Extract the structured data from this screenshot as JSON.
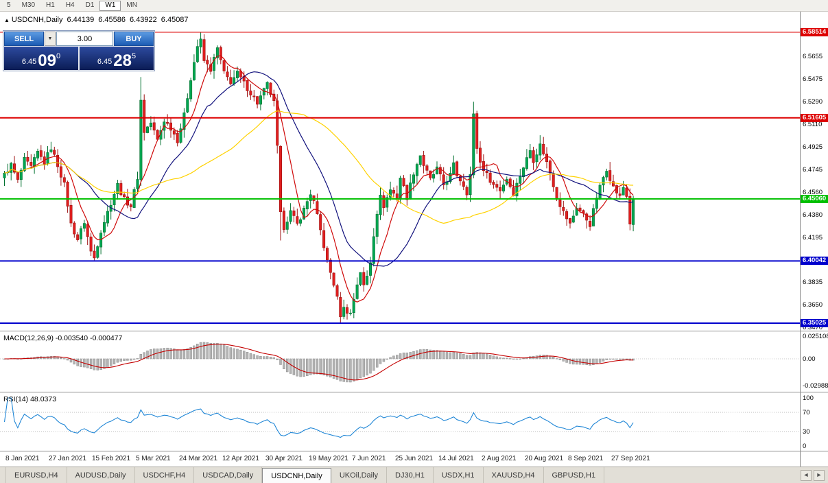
{
  "toolbar": {
    "timeframes": [
      "5",
      "M30",
      "H1",
      "H4",
      "D1",
      "W1",
      "MN"
    ],
    "selected": "W1"
  },
  "chart_header": {
    "arrow": "▲",
    "title": "USDCNH,Daily",
    "open": "6.44139",
    "high": "6.45586",
    "low": "6.43922",
    "close": "6.45087"
  },
  "trade_panel": {
    "sell_label": "SELL",
    "buy_label": "BUY",
    "volume": "3.00",
    "dropdown_glyph": "▼",
    "sell_price": {
      "prefix": "6.45",
      "digits": "09",
      "sup": "0"
    },
    "buy_price": {
      "prefix": "6.45",
      "digits": "28",
      "sup": "5"
    }
  },
  "macd_panel": {
    "label": "MACD(12,26,9) -0.003540 -0.000477",
    "ticks": [
      {
        "label": "0.025108",
        "v": 0.025108
      },
      {
        "label": "0.00",
        "v": 0
      },
      {
        "label": "-0.02988",
        "v": -0.02988
      }
    ]
  },
  "rsi_panel": {
    "label": "RSI(14) 48.0373",
    "ticks": [
      {
        "label": "100",
        "v": 100
      },
      {
        "label": "70",
        "v": 70
      },
      {
        "label": "30",
        "v": 30
      },
      {
        "label": "0",
        "v": 0
      }
    ]
  },
  "bottom_tabs": {
    "tabs": [
      "EURUSD,H4",
      "AUDUSD,Daily",
      "USDCHF,H4",
      "USDCAD,Daily",
      "USDCNH,Daily",
      "UKOil,Daily",
      "DJ30,H1",
      "USDX,H1",
      "XAUUSD,H4",
      "GBPUSD,H1"
    ],
    "active": "USDCNH,Daily",
    "scroll_left": "◄",
    "scroll_right": "►"
  },
  "chart_data": {
    "type": "candlestick",
    "symbol": "USDCNH",
    "timeframe": "Daily",
    "ohlc": {
      "open": 6.44139,
      "high": 6.45586,
      "low": 6.43922,
      "close": 6.45087
    },
    "num_candles": 190,
    "price_axis": {
      "top": 6.60176,
      "bottom": 6.3436
    },
    "price_scale_ticks": [
      "6.5655",
      "6.5475",
      "6.5290",
      "6.5110",
      "6.4925",
      "6.4745",
      "6.4560",
      "6.4380",
      "6.4195",
      "6.3835",
      "6.3650",
      "6.3470"
    ],
    "hlines": [
      {
        "price": 6.58514,
        "label": "6.58514",
        "color": "#dd0000",
        "width": 1
      },
      {
        "price": 6.51605,
        "label": "6.51605",
        "color": "#dd0000",
        "width": 2
      },
      {
        "price": 6.4506,
        "label": "6.45060",
        "color": "#00c000",
        "width": 2
      },
      {
        "price": 6.40042,
        "label": "6.40042",
        "color": "#0000cc",
        "width": 2
      },
      {
        "price": 6.35025,
        "label": "6.35025",
        "color": "#0000cc",
        "width": 2
      }
    ],
    "x_ticks": [
      {
        "i": 1,
        "label": "8 Jan 2021"
      },
      {
        "i": 14,
        "label": "27 Jan 2021"
      },
      {
        "i": 27,
        "label": "15 Feb 2021"
      },
      {
        "i": 40,
        "label": "5 Mar 2021"
      },
      {
        "i": 53,
        "label": "24 Mar 2021"
      },
      {
        "i": 66,
        "label": "12 Apr 2021"
      },
      {
        "i": 79,
        "label": "30 Apr 2021"
      },
      {
        "i": 92,
        "label": "19 May 2021"
      },
      {
        "i": 105,
        "label": "7 Jun 2021"
      },
      {
        "i": 118,
        "label": "25 Jun 2021"
      },
      {
        "i": 131,
        "label": "14 Jul 2021"
      },
      {
        "i": 144,
        "label": "2 Aug 2021"
      },
      {
        "i": 157,
        "label": "20 Aug 2021"
      },
      {
        "i": 170,
        "label": "8 Sep 2021"
      },
      {
        "i": 183,
        "label": "27 Sep 2021"
      }
    ],
    "price_anchors": [
      [
        0,
        6.47
      ],
      [
        2,
        6.478
      ],
      [
        4,
        6.465
      ],
      [
        6,
        6.482
      ],
      [
        8,
        6.476
      ],
      [
        10,
        6.488
      ],
      [
        12,
        6.48
      ],
      [
        14,
        6.492
      ],
      [
        16,
        6.478
      ],
      [
        18,
        6.462
      ],
      [
        20,
        6.43
      ],
      [
        22,
        6.418
      ],
      [
        24,
        6.432
      ],
      [
        26,
        6.408
      ],
      [
        27,
        6.403
      ],
      [
        29,
        6.425
      ],
      [
        31,
        6.44
      ],
      [
        33,
        6.455
      ],
      [
        34,
        6.462
      ],
      [
        36,
        6.45
      ],
      [
        38,
        6.445
      ],
      [
        40,
        6.468
      ],
      [
        41,
        6.53
      ],
      [
        42,
        6.505
      ],
      [
        44,
        6.512
      ],
      [
        46,
        6.498
      ],
      [
        48,
        6.514
      ],
      [
        50,
        6.508
      ],
      [
        52,
        6.498
      ],
      [
        54,
        6.518
      ],
      [
        56,
        6.548
      ],
      [
        58,
        6.574
      ],
      [
        59,
        6.578
      ],
      [
        60,
        6.562
      ],
      [
        62,
        6.555
      ],
      [
        64,
        6.572
      ],
      [
        66,
        6.552
      ],
      [
        68,
        6.545
      ],
      [
        70,
        6.552
      ],
      [
        73,
        6.54
      ],
      [
        76,
        6.528
      ],
      [
        79,
        6.543
      ],
      [
        81,
        6.528
      ],
      [
        82,
        6.492
      ],
      [
        83,
        6.438
      ],
      [
        84,
        6.428
      ],
      [
        86,
        6.44
      ],
      [
        88,
        6.43
      ],
      [
        90,
        6.442
      ],
      [
        92,
        6.455
      ],
      [
        93,
        6.448
      ],
      [
        95,
        6.425
      ],
      [
        97,
        6.4
      ],
      [
        99,
        6.382
      ],
      [
        100,
        6.37
      ],
      [
        101,
        6.357
      ],
      [
        102,
        6.362
      ],
      [
        104,
        6.358
      ],
      [
        106,
        6.382
      ],
      [
        107,
        6.392
      ],
      [
        108,
        6.38
      ],
      [
        109,
        6.388
      ],
      [
        110,
        6.4
      ],
      [
        111,
        6.422
      ],
      [
        112,
        6.44
      ],
      [
        113,
        6.452
      ],
      [
        114,
        6.445
      ],
      [
        116,
        6.458
      ],
      [
        118,
        6.452
      ],
      [
        119,
        6.468
      ],
      [
        121,
        6.452
      ],
      [
        123,
        6.472
      ],
      [
        125,
        6.486
      ],
      [
        126,
        6.478
      ],
      [
        128,
        6.466
      ],
      [
        130,
        6.475
      ],
      [
        132,
        6.462
      ],
      [
        134,
        6.47
      ],
      [
        135,
        6.478
      ],
      [
        136,
        6.47
      ],
      [
        138,
        6.462
      ],
      [
        139,
        6.456
      ],
      [
        140,
        6.47
      ],
      [
        141,
        6.518
      ],
      [
        142,
        6.492
      ],
      [
        143,
        6.48
      ],
      [
        145,
        6.47
      ],
      [
        147,
        6.462
      ],
      [
        149,
        6.458
      ],
      [
        151,
        6.467
      ],
      [
        153,
        6.455
      ],
      [
        155,
        6.47
      ],
      [
        157,
        6.483
      ],
      [
        158,
        6.49
      ],
      [
        159,
        6.482
      ],
      [
        161,
        6.494
      ],
      [
        162,
        6.488
      ],
      [
        164,
        6.472
      ],
      [
        166,
        6.452
      ],
      [
        168,
        6.44
      ],
      [
        170,
        6.43
      ],
      [
        172,
        6.444
      ],
      [
        174,
        6.438
      ],
      [
        176,
        6.43
      ],
      [
        178,
        6.452
      ],
      [
        180,
        6.468
      ],
      [
        181,
        6.475
      ],
      [
        183,
        6.46
      ],
      [
        185,
        6.452
      ],
      [
        186,
        6.46
      ],
      [
        187,
        6.453
      ],
      [
        188,
        6.431
      ],
      [
        189,
        6.4509
      ]
    ],
    "spikes": [
      {
        "i": 27,
        "l": 6.401
      },
      {
        "i": 41,
        "h": 6.549
      },
      {
        "i": 59,
        "h": 6.5851
      },
      {
        "i": 83,
        "l": 6.417
      },
      {
        "i": 101,
        "l": 6.3505
      },
      {
        "i": 141,
        "h": 6.529
      },
      {
        "i": 161,
        "h": 6.502
      },
      {
        "i": 188,
        "l": 6.4252
      }
    ],
    "colors": {
      "up": "#00a651",
      "up_dark": "#00712f",
      "down": "#e01f1f",
      "down_dark": "#9c0f0f"
    },
    "moving_averages": [
      {
        "period": 8,
        "color": "#cf0a0a"
      },
      {
        "period": 21,
        "color": "#12127d"
      },
      {
        "period": 50,
        "color": "#ffd200"
      }
    ],
    "macd": {
      "fast": 12,
      "slow": 26,
      "signal": 9,
      "hist_color": "#b4b4b4",
      "hist_stroke": "#8e8e8e",
      "signal_color": "#c40000",
      "display_max": 0.026
    },
    "rsi": {
      "period": 14,
      "color": "#1f86d6",
      "levels": [
        70,
        30
      ]
    }
  }
}
